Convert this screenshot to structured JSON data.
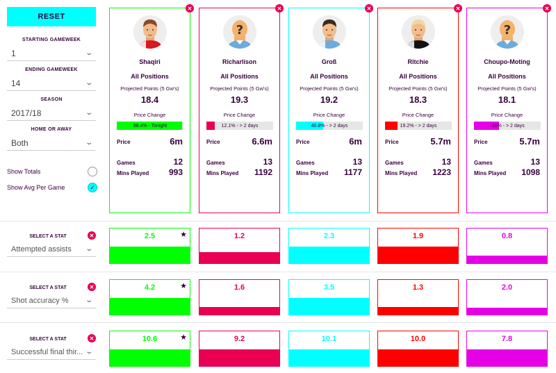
{
  "sidebar": {
    "reset_label": "RESET",
    "starting_gw_label": "STARTING GAMEWEEK",
    "starting_gw_value": "1",
    "ending_gw_label": "ENDING GAMEWEEK",
    "ending_gw_value": "14",
    "season_label": "SEASON",
    "season_value": "2017/18",
    "home_away_label": "HOME OR AWAY",
    "home_away_value": "Both",
    "show_totals_label": "Show Totals",
    "show_totals_checked": false,
    "show_avg_label": "Show Avg Per Game",
    "show_avg_checked": true
  },
  "common": {
    "projected_label": "Projected Points (5 Gw's)",
    "price_change_label": "Price Change",
    "price_label": "Price",
    "games_label": "Games",
    "mins_label": "Mins Played"
  },
  "players": [
    {
      "name": "Shaqiri",
      "position": "All Positions",
      "projected": "18.4",
      "price_change_text": "98.4% - Tonight",
      "price_change_pct": 98.4,
      "price": "6m",
      "games": "12",
      "mins": "993",
      "color": "#00ff00",
      "hair": "#8b4a2b",
      "shirt": "#d71920",
      "mystery": false
    },
    {
      "name": "Richarlison",
      "position": "All Positions",
      "projected": "19.3",
      "price_change_text": "12.1% - > 2 days",
      "price_change_pct": 12.1,
      "price": "6.6m",
      "games": "13",
      "mins": "1192",
      "color": "#e90052",
      "hair": "",
      "shirt": "#6cabdd",
      "mystery": true
    },
    {
      "name": "Groß",
      "position": "All Positions",
      "projected": "19.2",
      "price_change_text": "40.8% - > 2 days",
      "price_change_pct": 40.8,
      "price": "6m",
      "games": "13",
      "mins": "1177",
      "color": "#00ffff",
      "hair": "#3b2a1e",
      "shirt": "#6cabdd",
      "mystery": false
    },
    {
      "name": "Ritchie",
      "position": "All Positions",
      "projected": "18.3",
      "price_change_text": "19.2% - > 2 days",
      "price_change_pct": 19.2,
      "price": "5.7m",
      "games": "13",
      "mins": "1223",
      "color": "#ff0000",
      "hair": "#f0d9a0",
      "shirt": "#111111",
      "mystery": false
    },
    {
      "name": "Choupo-Moting",
      "position": "All Positions",
      "projected": "18.1",
      "price_change_text": "-38% - > 2 days",
      "price_change_pct": -38,
      "price": "5.7m",
      "games": "13",
      "mins": "1098",
      "color": "#e600e6",
      "hair": "",
      "shirt": "#6cabdd",
      "mystery": true
    }
  ],
  "stats": [
    {
      "label": "SELECT A STAT",
      "stat": "Attempted assists",
      "values": [
        "2.5",
        "1.2",
        "2.3",
        "1.9",
        "0.8"
      ],
      "fill_frac": [
        0.48,
        0.32,
        0.48,
        0.48,
        0.22
      ],
      "best_index": 0
    },
    {
      "label": "SELECT A STAT",
      "stat": "Shot accuracy %",
      "values": [
        "4.2",
        "1.6",
        "3.5",
        "1.3",
        "2.0"
      ],
      "fill_frac": [
        0.48,
        0.22,
        0.48,
        0.22,
        0.2
      ],
      "best_index": 0
    },
    {
      "label": "SELECT A STAT",
      "stat": "Successful final thir...",
      "values": [
        "10.6",
        "9.2",
        "10.1",
        "10.0",
        "7.8"
      ],
      "fill_frac": [
        0.48,
        0.48,
        0.48,
        0.48,
        0.48
      ],
      "best_index": 0
    }
  ]
}
